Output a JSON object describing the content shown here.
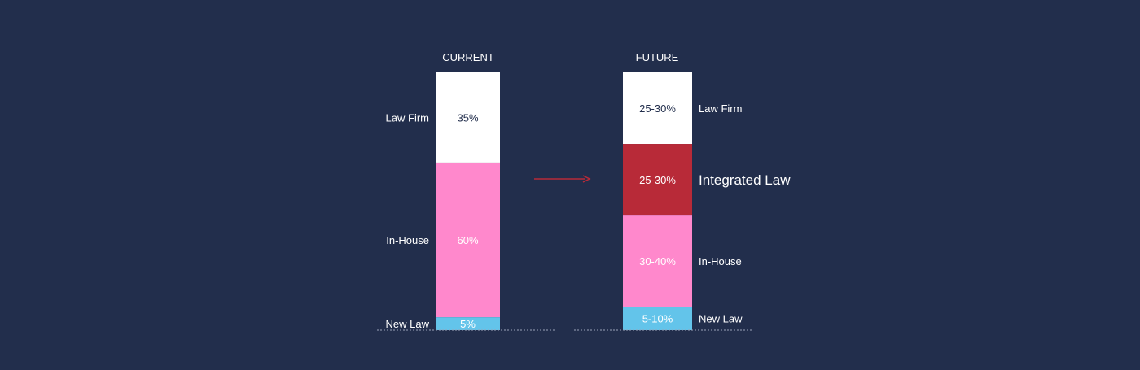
{
  "chart_data": {
    "type": "bar",
    "stacked": true,
    "bars": [
      {
        "title": "CURRENT",
        "segments": [
          {
            "category": "Law Firm",
            "label": "35%",
            "value": 35,
            "color": "#ffffff",
            "text_color": "#222e4c"
          },
          {
            "category": "In-House",
            "label": "60%",
            "value": 60,
            "color": "#ff88cc",
            "text_color": "#ffffff"
          },
          {
            "category": "New Law",
            "label": "5%",
            "value": 5,
            "color": "#63c4ea",
            "text_color": "#ffffff"
          }
        ]
      },
      {
        "title": "FUTURE",
        "segments": [
          {
            "category": "Law Firm",
            "label": "25-30%",
            "value": 27.5,
            "color": "#ffffff",
            "text_color": "#222e4c"
          },
          {
            "category": "Integrated  Law",
            "label": "25-30%",
            "value": 27.5,
            "color": "#b82a38",
            "text_color": "#ffffff"
          },
          {
            "category": "In-House",
            "label": "30-40%",
            "value": 35,
            "color": "#ff88cc",
            "text_color": "#ffffff"
          },
          {
            "category": "New Law",
            "label": "5-10%",
            "value": 9,
            "color": "#63c4ea",
            "text_color": "#ffffff"
          }
        ]
      }
    ],
    "arrow_color": "#b82a38",
    "baseline_style": "dotted"
  },
  "colors": {
    "background": "#222e4c",
    "label_text": "#ffffff"
  }
}
